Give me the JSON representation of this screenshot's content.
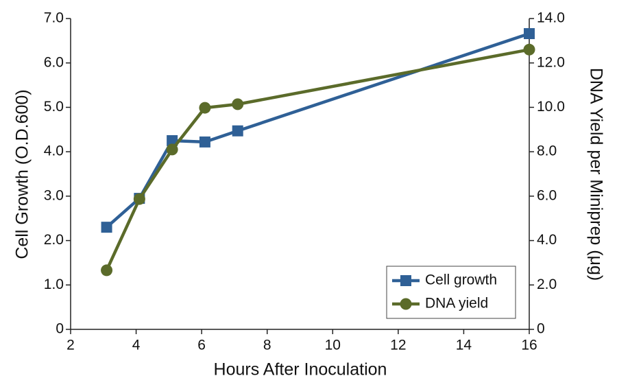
{
  "chart_data": {
    "type": "line",
    "xlabel": "Hours After Inoculation",
    "ylabel": "Cell Growth (O.D.600)",
    "y2label": "DNA Yield per Miniprep (μg)",
    "x": [
      3.1,
      4.1,
      5.1,
      6.1,
      7.1,
      16
    ],
    "series": [
      {
        "name": "Cell growth",
        "color": "#2f6096",
        "marker": "square",
        "values": [
          2.3,
          2.95,
          4.25,
          4.22,
          4.47,
          6.66
        ]
      },
      {
        "name": "DNA yield",
        "color": "#5b6b2a",
        "marker": "circle",
        "axis": "y2",
        "values": [
          2.66,
          5.87,
          8.1,
          9.98,
          10.14,
          12.6
        ]
      }
    ],
    "xlim": [
      2,
      16
    ],
    "xticks": [
      2,
      4,
      6,
      8,
      10,
      12,
      14,
      16
    ],
    "ylim": [
      0,
      7
    ],
    "yticks": [
      0,
      {
        "value": 1,
        "label": "1.0"
      },
      {
        "value": 2,
        "label": "2.0"
      },
      {
        "value": 3,
        "label": "3.0"
      },
      {
        "value": 4,
        "label": "4.0"
      },
      {
        "value": 5,
        "label": "5.0"
      },
      {
        "value": 6,
        "label": "6.0"
      },
      {
        "value": 7,
        "label": "7.0"
      }
    ],
    "y2lim": [
      0,
      14
    ],
    "y2ticks": [
      0,
      {
        "value": 2,
        "label": "2.0"
      },
      {
        "value": 4,
        "label": "4.0"
      },
      {
        "value": 6,
        "label": "6.0"
      },
      {
        "value": 8,
        "label": "8.0"
      },
      {
        "value": 10,
        "label": "10.0"
      },
      {
        "value": 12,
        "label": "12.0"
      },
      {
        "value": 14,
        "label": "14.0"
      }
    ],
    "legend": "lower right",
    "grid": false
  }
}
